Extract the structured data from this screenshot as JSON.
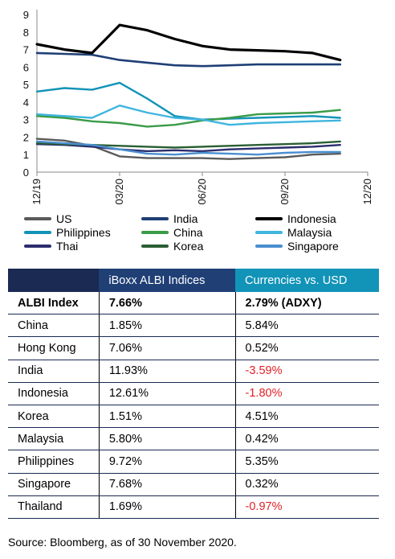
{
  "chart_data": {
    "type": "line",
    "y_ticks": [
      "0",
      "1",
      "2",
      "3",
      "4",
      "5",
      "6",
      "7",
      "8",
      "9"
    ],
    "ylim": [
      0,
      9
    ],
    "x_ticks": [
      "12/19",
      "03/20",
      "06/20",
      "09/20",
      "12/20"
    ],
    "grid": false,
    "legend_position": "bottom",
    "series": [
      {
        "name": "US",
        "color": "#5a5a5a",
        "x": [
          "12/19",
          "01/20",
          "02/20",
          "03/20",
          "04/20",
          "05/20",
          "06/20",
          "07/20",
          "08/20",
          "09/20",
          "10/20",
          "11/20"
        ],
        "values": [
          1.9,
          1.8,
          1.5,
          0.9,
          0.8,
          0.8,
          0.8,
          0.75,
          0.8,
          0.85,
          1.0,
          1.05
        ]
      },
      {
        "name": "India",
        "color": "#1f3f75",
        "x": [
          "12/19",
          "01/20",
          "02/20",
          "03/20",
          "04/20",
          "05/20",
          "06/20",
          "07/20",
          "08/20",
          "09/20",
          "10/20",
          "11/20"
        ],
        "values": [
          6.8,
          6.75,
          6.7,
          6.4,
          6.25,
          6.1,
          6.05,
          6.1,
          6.15,
          6.15,
          6.15,
          6.15
        ]
      },
      {
        "name": "Indonesia",
        "color": "#000000",
        "x": [
          "12/19",
          "01/20",
          "02/20",
          "03/20",
          "04/20",
          "05/20",
          "06/20",
          "07/20",
          "08/20",
          "09/20",
          "10/20",
          "11/20"
        ],
        "values": [
          7.3,
          7.0,
          6.8,
          8.4,
          8.1,
          7.6,
          7.2,
          7.0,
          6.95,
          6.9,
          6.8,
          6.4
        ]
      },
      {
        "name": "Philippines",
        "color": "#1293b8",
        "x": [
          "12/19",
          "01/20",
          "02/20",
          "03/20",
          "04/20",
          "05/20",
          "06/20",
          "07/20",
          "08/20",
          "09/20",
          "10/20",
          "11/20"
        ],
        "values": [
          4.6,
          4.8,
          4.7,
          5.1,
          4.2,
          3.2,
          3.0,
          3.05,
          3.1,
          3.15,
          3.2,
          3.1
        ]
      },
      {
        "name": "China",
        "color": "#3a9b48",
        "x": [
          "12/19",
          "01/20",
          "02/20",
          "03/20",
          "04/20",
          "05/20",
          "06/20",
          "07/20",
          "08/20",
          "09/20",
          "10/20",
          "11/20"
        ],
        "values": [
          3.2,
          3.1,
          2.9,
          2.8,
          2.6,
          2.7,
          2.95,
          3.1,
          3.3,
          3.35,
          3.4,
          3.55
        ]
      },
      {
        "name": "Malaysia",
        "color": "#3fb5df",
        "x": [
          "12/19",
          "01/20",
          "02/20",
          "03/20",
          "04/20",
          "05/20",
          "06/20",
          "07/20",
          "08/20",
          "09/20",
          "10/20",
          "11/20"
        ],
        "values": [
          3.3,
          3.2,
          3.1,
          3.8,
          3.4,
          3.1,
          3.0,
          2.7,
          2.8,
          2.85,
          2.9,
          2.95
        ]
      },
      {
        "name": "Thai",
        "color": "#2c2d6e",
        "x": [
          "12/19",
          "01/20",
          "02/20",
          "03/20",
          "04/20",
          "05/20",
          "06/20",
          "07/20",
          "08/20",
          "09/20",
          "10/20",
          "11/20"
        ],
        "values": [
          1.6,
          1.55,
          1.45,
          1.3,
          1.2,
          1.25,
          1.2,
          1.3,
          1.35,
          1.4,
          1.45,
          1.55
        ]
      },
      {
        "name": "Korea",
        "color": "#2a5e33",
        "x": [
          "12/19",
          "01/20",
          "02/20",
          "03/20",
          "04/20",
          "05/20",
          "06/20",
          "07/20",
          "08/20",
          "09/20",
          "10/20",
          "11/20"
        ],
        "values": [
          1.65,
          1.6,
          1.55,
          1.5,
          1.45,
          1.4,
          1.45,
          1.5,
          1.55,
          1.6,
          1.65,
          1.75
        ]
      },
      {
        "name": "Singapore",
        "color": "#4a8fd0",
        "x": [
          "12/19",
          "01/20",
          "02/20",
          "03/20",
          "04/20",
          "05/20",
          "06/20",
          "07/20",
          "08/20",
          "09/20",
          "10/20",
          "11/20"
        ],
        "values": [
          1.75,
          1.65,
          1.55,
          1.3,
          1.05,
          1.0,
          1.1,
          1.05,
          1.0,
          1.1,
          1.15,
          1.15
        ]
      }
    ]
  },
  "table": {
    "headers": [
      "",
      "iBoxx ALBI Indices",
      "Currencies vs. USD"
    ],
    "rows": [
      {
        "name": "ALBI Index",
        "albi": "7.66%",
        "fx": "2.79% (ADXY)"
      },
      {
        "name": "China",
        "albi": "1.85%",
        "fx": "5.84%"
      },
      {
        "name": "Hong Kong",
        "albi": "7.06%",
        "fx": "0.52%"
      },
      {
        "name": "India",
        "albi": "11.93%",
        "fx": "-3.59%"
      },
      {
        "name": "Indonesia",
        "albi": "12.61%",
        "fx": "-1.80%"
      },
      {
        "name": "Korea",
        "albi": "1.51%",
        "fx": "4.51%"
      },
      {
        "name": "Malaysia",
        "albi": "5.80%",
        "fx": "0.42%"
      },
      {
        "name": "Philippines",
        "albi": "9.72%",
        "fx": "5.35%"
      },
      {
        "name": "Singapore",
        "albi": "7.68%",
        "fx": "0.32%"
      },
      {
        "name": "Thailand",
        "albi": "1.69%",
        "fx": "-0.97%"
      }
    ]
  },
  "source": "Source: Bloomberg, as of 30 November 2020."
}
